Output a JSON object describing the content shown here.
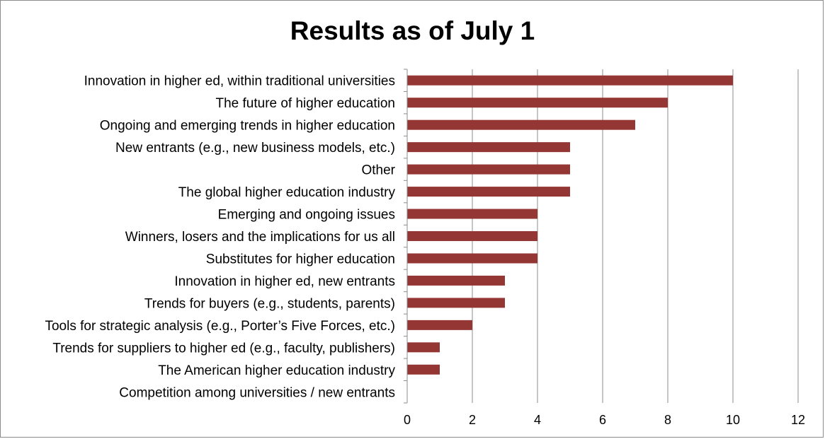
{
  "chart_data": {
    "type": "bar",
    "orientation": "horizontal",
    "title": "Results as of July 1",
    "xlabel": "",
    "ylabel": "",
    "xlim": [
      0,
      12
    ],
    "x_ticks": [
      "0",
      "2",
      "4",
      "6",
      "8",
      "10",
      "12"
    ],
    "grid": true,
    "legend": "none",
    "bar_color": "#943634",
    "categories": [
      "Innovation in higher ed, within traditional universities",
      "The future of higher education",
      "Ongoing and emerging trends in higher education",
      "New entrants (e.g., new business models, etc.)",
      "Other",
      "The global higher education industry",
      "Emerging and ongoing issues",
      "Winners, losers and the implications for us all",
      "Substitutes for higher education",
      "Innovation in higher ed, new entrants",
      "Trends for buyers (e.g., students, parents)",
      "Tools for strategic analysis (e.g., Porter’s Five Forces, etc.)",
      "Trends for suppliers to higher ed (e.g., faculty, publishers)",
      "The American higher education industry",
      "Competition among universities / new entrants"
    ],
    "values": [
      10,
      8,
      7,
      5,
      5,
      5,
      4,
      4,
      4,
      3,
      3,
      2,
      1,
      1,
      0
    ]
  }
}
